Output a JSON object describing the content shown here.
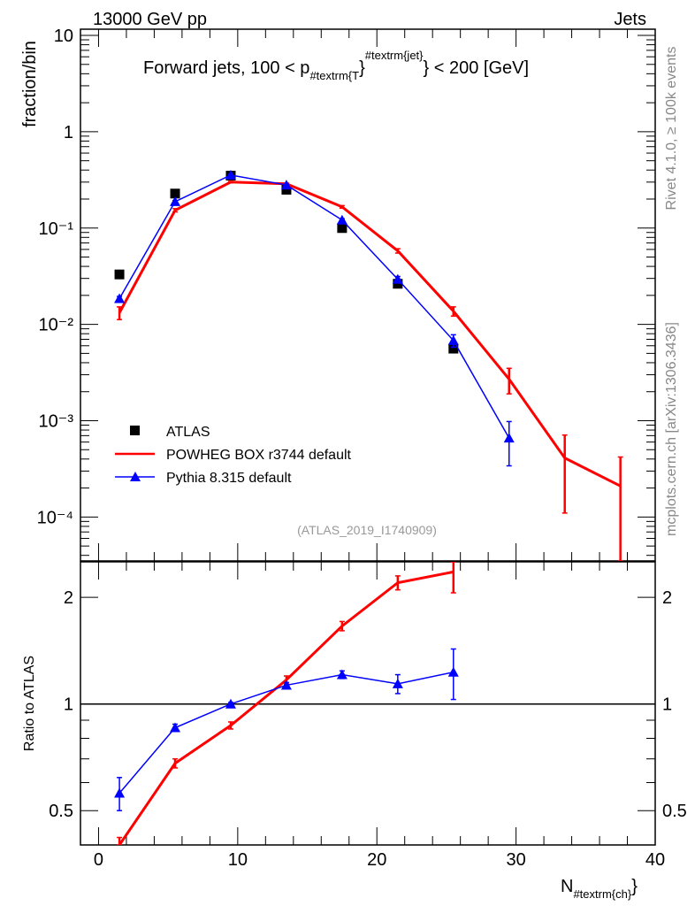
{
  "header": {
    "left": "13000 GeV pp",
    "right": "Jets"
  },
  "side": {
    "rivet": "Rivet 4.1.0, ≥ 100k events",
    "mcplots": "mcplots.cern.ch [arXiv:1306.3436]"
  },
  "title": {
    "pre": "Forward jets, 100 < p",
    "sub": "#textrm{T",
    "mid": "}",
    "sup": "#textrm{jet}",
    "post": "} < 200 [GeV]"
  },
  "watermark": "(ATLAS_2019_I1740909)",
  "chart_data": [
    {
      "type": "line",
      "panel": "main",
      "ylabel": "fraction/bin",
      "yscale": "log",
      "ylim": [
        3.5e-05,
        11.6
      ],
      "xlim": [
        -1.3,
        40
      ],
      "yticks": [
        {
          "v": 10,
          "label": "10"
        },
        {
          "v": 1,
          "label": "1"
        },
        {
          "v": 0.1,
          "label": "10⁻¹"
        },
        {
          "v": 0.01,
          "label": "10⁻²"
        },
        {
          "v": 0.001,
          "label": "10⁻³"
        },
        {
          "v": 0.0001,
          "label": "10⁻⁴"
        }
      ],
      "legend": {
        "placement": "bottom-left"
      },
      "series": [
        {
          "name": "ATLAS",
          "color": "#000000",
          "marker": "square",
          "x": [
            1.5,
            5.5,
            9.5,
            13.5,
            17.5,
            21.5,
            25.5
          ],
          "y": [
            0.033,
            0.228,
            0.35,
            0.25,
            0.1,
            0.0264,
            0.0056
          ],
          "err": [
            0,
            0,
            0,
            0,
            0,
            0,
            0
          ]
        },
        {
          "name": "POWHEG BOX r3744 default",
          "color": "#ff0000",
          "marker": "none",
          "x": [
            1.5,
            5.5,
            9.5,
            13.5,
            17.5,
            21.5,
            25.5,
            29.5,
            33.5,
            37.5
          ],
          "y": [
            0.0132,
            0.153,
            0.3,
            0.288,
            0.166,
            0.058,
            0.0137,
            0.0027,
            0.00041,
            0.00021
          ],
          "err": [
            0.002,
            0.006,
            0.005,
            0.005,
            0.005,
            0.003,
            0.0015,
            0.0008,
            0.0003,
            0.00021
          ]
        },
        {
          "name": "Pythia 8.315 default",
          "color": "#0000ff",
          "marker": "triangle",
          "x": [
            1.5,
            5.5,
            9.5,
            13.5,
            17.5,
            21.5,
            25.5,
            29.5
          ],
          "y": [
            0.0185,
            0.188,
            0.355,
            0.28,
            0.121,
            0.0294,
            0.0068,
            0.00066
          ],
          "err": [
            0.001,
            0.005,
            0.005,
            0.005,
            0.004,
            0.002,
            0.001,
            0.00032
          ]
        }
      ]
    },
    {
      "type": "line",
      "panel": "ratio",
      "ylabel": "Ratio to ATLAS",
      "xlabel_main": "N",
      "xlabel_sub": "#textrm{ch}",
      "xlabel_end": "}",
      "yscale": "log",
      "ylim": [
        0.4,
        2.52
      ],
      "xlim": [
        -1.3,
        40
      ],
      "xticks": [
        0,
        10,
        20,
        30,
        40
      ],
      "yticks": [
        {
          "v": 0.5,
          "label": "0.5"
        },
        {
          "v": 1,
          "label": "1"
        },
        {
          "v": 2,
          "label": "2"
        }
      ],
      "series": [
        {
          "name": "POWHEG BOX r3744 default",
          "color": "#ff0000",
          "x": [
            1.5,
            5.5,
            9.5,
            13.5,
            17.5,
            21.5,
            25.5
          ],
          "y": [
            0.4,
            0.68,
            0.87,
            1.17,
            1.66,
            2.2,
            2.36
          ],
          "err": [
            0.02,
            0.02,
            0.02,
            0.03,
            0.05,
            0.1,
            0.3
          ]
        },
        {
          "name": "Pythia 8.315 default",
          "color": "#0000ff",
          "x": [
            1.5,
            5.5,
            9.5,
            13.5,
            17.5,
            21.5,
            25.5
          ],
          "y": [
            0.56,
            0.857,
            1.0,
            1.13,
            1.21,
            1.14,
            1.23
          ],
          "err": [
            0.06,
            0.02,
            0.01,
            0.02,
            0.03,
            0.07,
            0.2
          ]
        }
      ]
    }
  ]
}
